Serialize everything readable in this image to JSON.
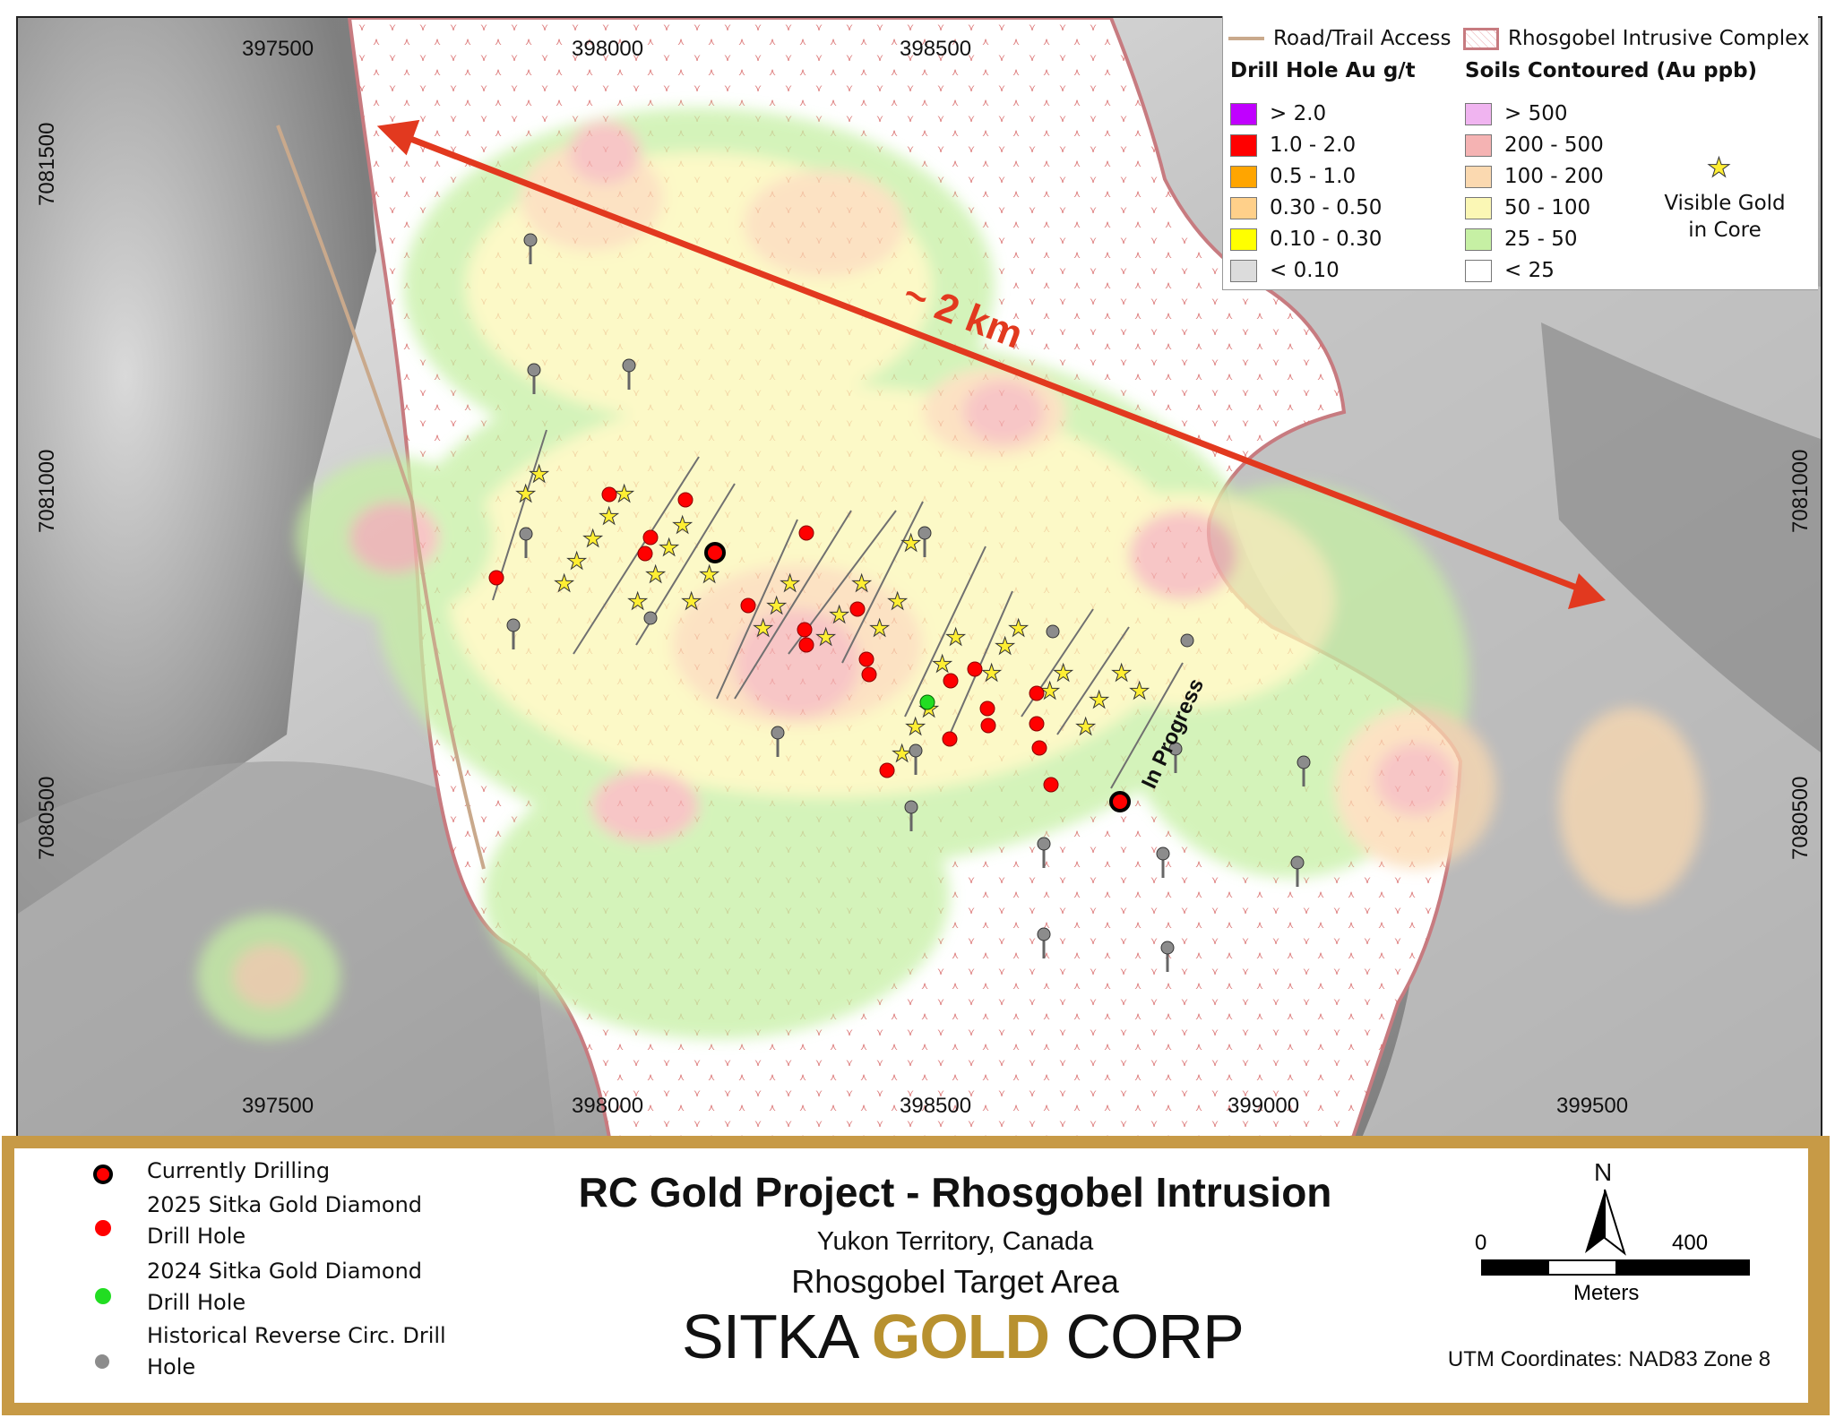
{
  "map": {
    "x_labels_top": [
      "397500",
      "398000",
      "398500"
    ],
    "x_labels_bottom": [
      "397500",
      "398000",
      "398500",
      "399000",
      "399500"
    ],
    "y_labels_left": [
      "7081500",
      "7081000",
      "7080500"
    ],
    "y_labels_right": [
      "7081000",
      "7080500"
    ],
    "distance_label": "~ 2 km",
    "in_progress_label": "In Progress",
    "colors": {
      "intrusion_outline": "#c77b80",
      "arrow": "#e2391f",
      "drill_red": "#ff0000",
      "drill_green": "#22dd22",
      "drill_grey": "#8c8c8c",
      "star": "#ffee33"
    }
  },
  "legend": {
    "road_label": "Road/Trail Access",
    "intrusive_label": "Rhosgobel Intrusive Complex",
    "drill_header": "Drill Hole Au g/t",
    "soils_header": "Soils Contoured (Au ppb)",
    "drill_items": [
      {
        "label": "> 2.0",
        "color": "#c000ff"
      },
      {
        "label": "1.0 - 2.0",
        "color": "#ff0000"
      },
      {
        "label": "0.5 - 1.0",
        "color": "#ffa500"
      },
      {
        "label": "0.30 - 0.50",
        "color": "#ffd08a"
      },
      {
        "label": "0.10 - 0.30",
        "color": "#ffff00"
      },
      {
        "label": "< 0.10",
        "color": "#dcdcdc"
      }
    ],
    "soil_items": [
      {
        "label": "> 500",
        "color": "#f0b4f0"
      },
      {
        "label": "200 - 500",
        "color": "#f5b3b3"
      },
      {
        "label": "100 - 200",
        "color": "#fbd9b0"
      },
      {
        "label": "50 - 100",
        "color": "#fbf7b5"
      },
      {
        "label": "25 - 50",
        "color": "#c6f0a4"
      },
      {
        "label": "< 25",
        "color": "#ffffff"
      }
    ],
    "visible_gold_line1": "Visible Gold",
    "visible_gold_line2": "in Core"
  },
  "bottom": {
    "legend_items": [
      {
        "line1": "Currently Drilling",
        "line2": ""
      },
      {
        "line1": "2025 Sitka Gold Diamond",
        "line2": "Drill Hole"
      },
      {
        "line1": "2024 Sitka Gold Diamond",
        "line2": "Drill Hole"
      },
      {
        "line1": "Historical Reverse Circ. Drill",
        "line2": "Hole"
      }
    ],
    "title": "RC Gold Project - Rhosgobel Intrusion",
    "subtitle1": "Yukon Territory, Canada",
    "subtitle2": "Rhosgobel Target Area",
    "logo_part1": "SITKA ",
    "logo_part2": "GOLD",
    "logo_part3": " CORP",
    "north_label": "N",
    "scale_start": "0",
    "scale_end": "400",
    "scale_unit": "Meters",
    "utm": "UTM Coordinates: NAD83 Zone 8"
  }
}
